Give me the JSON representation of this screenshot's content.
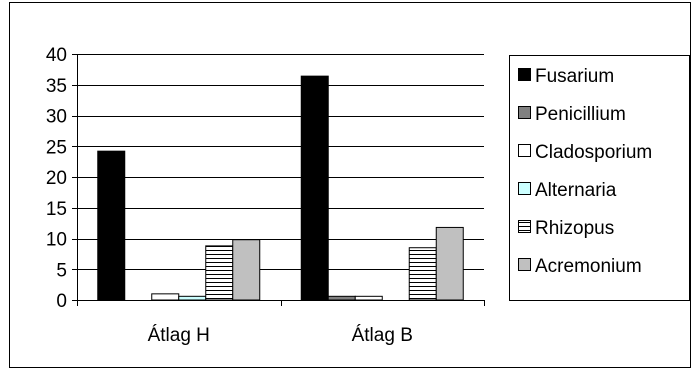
{
  "chart_data": {
    "type": "bar",
    "title": "",
    "xlabel": "",
    "ylabel": "",
    "ylim": [
      0,
      40
    ],
    "yticks": [
      0,
      5,
      10,
      15,
      20,
      25,
      30,
      35,
      40
    ],
    "grid": true,
    "legend_position": "right",
    "categories": [
      "Átlag H",
      "Átlag B"
    ],
    "series": [
      {
        "name": "Fusarium",
        "values": [
          24.2,
          36.4
        ],
        "color": "#000000",
        "pattern": "solid"
      },
      {
        "name": "Penicillium",
        "values": [
          0.0,
          0.6
        ],
        "color": "#808080",
        "pattern": "solid"
      },
      {
        "name": "Cladosporium",
        "values": [
          1.0,
          0.6
        ],
        "color": "#ffffff",
        "pattern": "solid"
      },
      {
        "name": "Alternaria",
        "values": [
          0.6,
          0.0
        ],
        "color": "#ccffff",
        "pattern": "solid"
      },
      {
        "name": "Rhizopus",
        "values": [
          8.8,
          8.5
        ],
        "color": "#ffffff",
        "pattern": "horizontal-lines"
      },
      {
        "name": "Acremonium",
        "values": [
          9.8,
          11.8
        ],
        "color": "#c0c0c0",
        "pattern": "solid"
      }
    ]
  }
}
